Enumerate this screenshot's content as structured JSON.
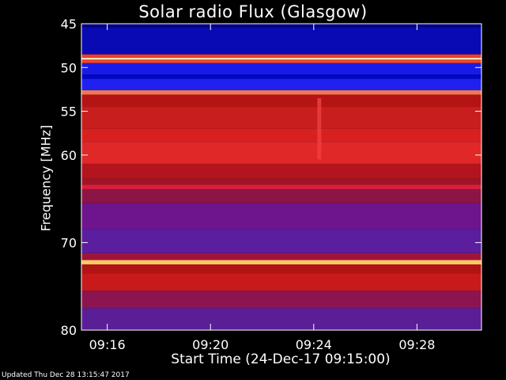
{
  "chart_data": {
    "type": "heatmap",
    "title": "Solar radio Flux (Glasgow)",
    "ylabel": "Frequency [MHz]",
    "xlabel": "Start Time (24-Dec-17 09:15:00)",
    "ylim": [
      45,
      80
    ],
    "xlim_minutes": [
      0,
      15.5
    ],
    "y_ticks": [
      {
        "label": "45",
        "value": 45
      },
      {
        "label": "50",
        "value": 50
      },
      {
        "label": "55",
        "value": 55
      },
      {
        "label": "60",
        "value": 60
      },
      {
        "label": "70",
        "value": 70
      },
      {
        "label": "80",
        "value": 80
      }
    ],
    "x_ticks": [
      {
        "label": "09:16",
        "value": 1
      },
      {
        "label": "09:20",
        "value": 5
      },
      {
        "label": "09:24",
        "value": 9
      },
      {
        "label": "09:28",
        "value": 13
      }
    ],
    "bands": [
      {
        "f0": 45.0,
        "f1": 45.4,
        "color": "#000080"
      },
      {
        "f0": 45.4,
        "f1": 48.5,
        "color": "#0A0AB4"
      },
      {
        "f0": 48.5,
        "f1": 48.9,
        "color": "#F03C28"
      },
      {
        "f0": 48.9,
        "f1": 49.1,
        "color": "#FFF2C8"
      },
      {
        "f0": 49.1,
        "f1": 49.5,
        "color": "#F04628"
      },
      {
        "f0": 49.5,
        "f1": 50.8,
        "color": "#1A1AE6"
      },
      {
        "f0": 50.8,
        "f1": 51.3,
        "color": "#0008C8"
      },
      {
        "f0": 51.3,
        "f1": 52.6,
        "color": "#2020F0"
      },
      {
        "f0": 52.6,
        "f1": 53.1,
        "color": "#F07850"
      },
      {
        "f0": 53.1,
        "f1": 54.5,
        "color": "#B41414"
      },
      {
        "f0": 54.5,
        "f1": 57.0,
        "color": "#C81E1E"
      },
      {
        "f0": 57.0,
        "f1": 58.5,
        "color": "#D82020"
      },
      {
        "f0": 58.5,
        "f1": 61.0,
        "color": "#E02828"
      },
      {
        "f0": 61.0,
        "f1": 62.7,
        "color": "#B4141E"
      },
      {
        "f0": 62.7,
        "f1": 63.4,
        "color": "#A01428"
      },
      {
        "f0": 63.4,
        "f1": 63.9,
        "color": "#D8203C"
      },
      {
        "f0": 63.9,
        "f1": 65.5,
        "color": "#8C1446"
      },
      {
        "f0": 65.5,
        "f1": 68.5,
        "color": "#6E148C"
      },
      {
        "f0": 68.5,
        "f1": 71.2,
        "color": "#5A1E9E"
      },
      {
        "f0": 71.2,
        "f1": 72.0,
        "color": "#A0143C"
      },
      {
        "f0": 72.0,
        "f1": 72.5,
        "color": "#FFC864"
      },
      {
        "f0": 72.5,
        "f1": 73.5,
        "color": "#B01414"
      },
      {
        "f0": 73.5,
        "f1": 75.5,
        "color": "#C81A1A"
      },
      {
        "f0": 75.5,
        "f1": 77.5,
        "color": "#8C1450"
      },
      {
        "f0": 77.5,
        "f1": 80.0,
        "color": "#5A1E96"
      }
    ],
    "burst": {
      "t": 9.2,
      "f0": 53.5,
      "f1": 60.5,
      "color": "#F04040"
    },
    "grid": false,
    "legend": "none",
    "colors": {
      "background": "#000000",
      "axis": "#FFFFFF"
    }
  },
  "footer": {
    "updated": "Updated Thu Dec 28 13:15:47 2017"
  }
}
